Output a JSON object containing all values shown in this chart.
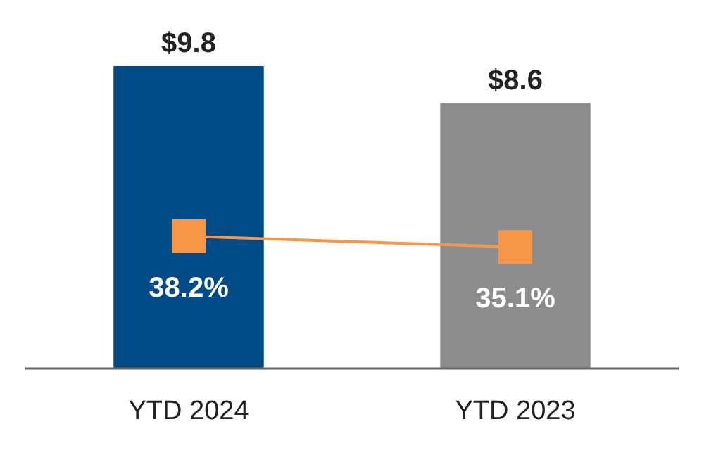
{
  "chart_data": {
    "type": "bar",
    "categories": [
      "YTD 2024",
      "YTD 2023"
    ],
    "tick_labels": "x",
    "marker": "square",
    "series": [
      {
        "colors": [
          "#004a85",
          "#8c8c8c"
        ],
        "values": [
          9.8,
          8.6
        ],
        "value_labels": [
          "$9.8",
          "$8.6"
        ]
      },
      {
        "type": "line",
        "axis": "y2",
        "color": "#f79646",
        "values": [
          38.2,
          35.1
        ],
        "value_labels": [
          "38.2%",
          "35.1%"
        ]
      }
    ]
  }
}
